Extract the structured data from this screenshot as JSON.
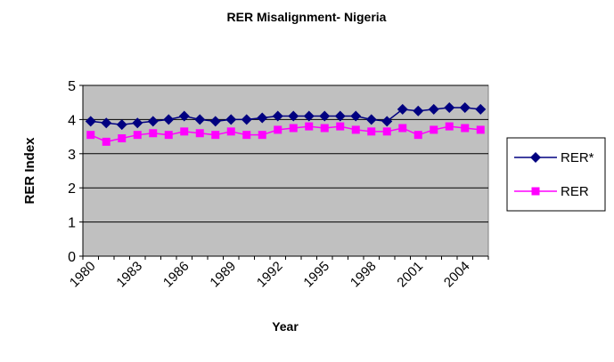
{
  "chart_data": {
    "type": "line",
    "title": "RER Misalignment- Nigeria",
    "x_label": "Year",
    "y_label": "RER Index",
    "categories": [
      "1980",
      null,
      null,
      "1983",
      null,
      null,
      "1986",
      null,
      null,
      "1989",
      null,
      null,
      "1992",
      null,
      null,
      "1995",
      null,
      null,
      "1998",
      null,
      null,
      "2001",
      null,
      null,
      "2004",
      null
    ],
    "series": [
      {
        "name": "RER*",
        "color": "#000080",
        "marker": "diamond",
        "values": [
          3.95,
          3.9,
          3.85,
          3.9,
          3.95,
          4.0,
          4.1,
          4.0,
          3.95,
          4.0,
          4.0,
          4.05,
          4.1,
          4.1,
          4.1,
          4.1,
          4.1,
          4.1,
          4.0,
          3.95,
          4.3,
          4.25,
          4.3,
          4.35,
          4.35,
          4.3
        ]
      },
      {
        "name": "RER",
        "color": "#ff00ff",
        "marker": "square",
        "values": [
          3.55,
          3.35,
          3.45,
          3.55,
          3.6,
          3.55,
          3.65,
          3.6,
          3.55,
          3.65,
          3.55,
          3.55,
          3.7,
          3.75,
          3.8,
          3.75,
          3.8,
          3.7,
          3.65,
          3.65,
          3.75,
          3.55,
          3.7,
          3.8,
          3.75,
          3.7
        ]
      }
    ],
    "ylim": [
      0,
      5
    ],
    "yticks": [
      0,
      1,
      2,
      3,
      4,
      5
    ],
    "grid": true,
    "legend": "right",
    "plot_background": "#c0c0c0"
  }
}
